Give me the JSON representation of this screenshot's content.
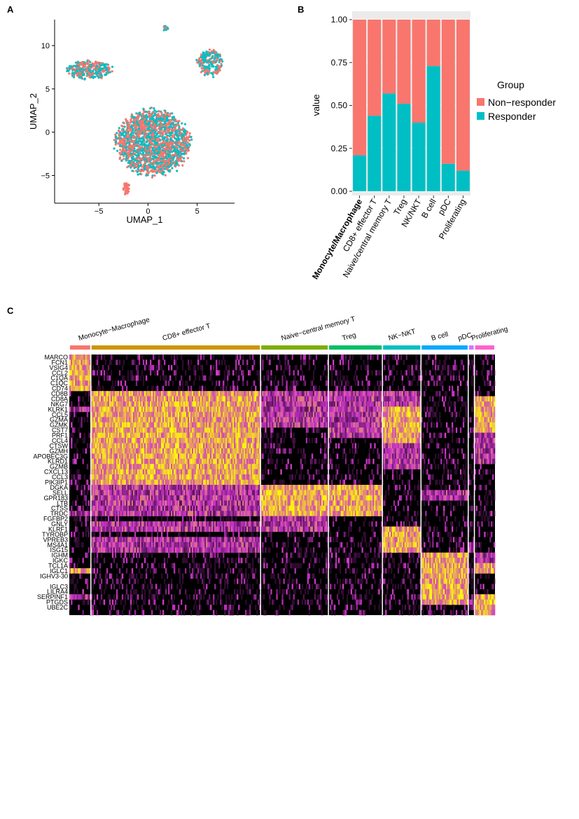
{
  "panels": {
    "a": "A",
    "b": "B",
    "c": "C"
  },
  "chart_data": [
    {
      "type": "scatter",
      "xlabel": "UMAP_1",
      "ylabel": "UMAP_2",
      "xlim": [
        -9.5,
        8.8
      ],
      "ylim": [
        -8.2,
        13
      ],
      "xticks": [
        -5,
        0,
        5
      ],
      "yticks": [
        -5,
        0,
        5,
        10
      ],
      "colors": {
        "Non-responder": "#F8766D",
        "Responder": "#00BFC4"
      },
      "clusters": [
        {
          "cx": 0.5,
          "cy": -1.2,
          "rx": 3.6,
          "ry": 3.6,
          "n": 1900
        },
        {
          "cx": -6.0,
          "cy": 7.2,
          "rx": 2.3,
          "ry": 1.0,
          "n": 320
        },
        {
          "cx": 6.3,
          "cy": 8.0,
          "rx": 1.3,
          "ry": 1.5,
          "n": 230
        },
        {
          "cx": 1.7,
          "cy": 12.0,
          "rx": 0.4,
          "ry": 0.25,
          "n": 18
        },
        {
          "cx": -2.2,
          "cy": -6.5,
          "rx": 0.35,
          "ry": 0.7,
          "n": 40
        }
      ]
    },
    {
      "type": "bar",
      "stacked": true,
      "categories": [
        "Monocyte/Macrophage",
        "CD8+ effector T",
        "Naive/central memory T",
        "Treg",
        "NK/NKT",
        "B cell",
        "pDC",
        "Proliferating"
      ],
      "highlight_category": "Monocyte/Macrophage",
      "highlight_color": "#CC2222",
      "series": [
        {
          "name": "Responder",
          "color": "#00BFC4",
          "values": [
            0.21,
            0.44,
            0.57,
            0.51,
            0.4,
            0.73,
            0.16,
            0.12
          ]
        },
        {
          "name": "Non−responder",
          "color": "#F8766D",
          "values": [
            0.79,
            0.56,
            0.43,
            0.49,
            0.6,
            0.27,
            0.84,
            0.88
          ]
        }
      ],
      "ylabel": "value",
      "ylim": [
        0,
        1.0
      ],
      "yticks": [
        "0.00",
        "0.25",
        "0.50",
        "0.75",
        "1.00"
      ],
      "legend": {
        "title": "Group",
        "items": [
          "Non−responder",
          "Responder"
        ],
        "placement": "right"
      }
    },
    {
      "type": "heatmap",
      "groups": [
        {
          "label": "Monocyte−Macrophage",
          "color": "#F8766D",
          "cells": 42,
          "high": [
            0,
            1,
            2,
            3,
            4,
            5,
            6,
            41
          ],
          "weak": [
            10,
            30,
            46
          ]
        },
        {
          "label": "CD8+ effector T",
          "color": "#CD9600",
          "cells": 330,
          "high": [
            7,
            8,
            9,
            10,
            11,
            12,
            13,
            14,
            15,
            16,
            17,
            18,
            19,
            20,
            21,
            22,
            23,
            24
          ],
          "weak": [
            25,
            26,
            27,
            28,
            29,
            30,
            32,
            33,
            35,
            36,
            37
          ]
        },
        {
          "label": "Naive−central memory T",
          "color": "#7CAE00",
          "cells": 132,
          "high": [
            25,
            26,
            27,
            28,
            29,
            30
          ],
          "weak": [
            7,
            8,
            9,
            10,
            11,
            12,
            13,
            31,
            32,
            33
          ]
        },
        {
          "label": "Treg",
          "color": "#00BE67",
          "cells": 105,
          "high": [
            25,
            26,
            27,
            28,
            29,
            30
          ],
          "weak": [
            7,
            8,
            9,
            10,
            11,
            12,
            13,
            14,
            15
          ]
        },
        {
          "label": "NK−NKT",
          "color": "#00BFC4",
          "cells": 75,
          "high": [
            10,
            11,
            12,
            13,
            14,
            15,
            16,
            33,
            34,
            35,
            36,
            37
          ],
          "weak": [
            7,
            8,
            9,
            17,
            18,
            19,
            20,
            21
          ]
        },
        {
          "label": "B cell",
          "color": "#00A9FF",
          "cells": 92,
          "high": [
            38,
            39,
            40,
            41,
            42,
            43,
            44,
            45,
            46,
            47
          ],
          "weak": [
            26,
            27
          ]
        },
        {
          "label": "pDC",
          "color": "#C77CFF",
          "cells": 12,
          "high": [],
          "weak": [
            36,
            37,
            47,
            48
          ]
        },
        {
          "label": "Proliferating",
          "color": "#FF61CC",
          "cells": 40,
          "high": [
            8,
            9,
            10,
            11,
            12,
            13,
            14,
            40,
            41,
            46,
            47,
            48,
            49
          ],
          "weak": [
            15,
            16,
            17,
            18,
            19,
            20,
            38,
            39
          ]
        }
      ],
      "genes": [
        "MARCO",
        "FCN1",
        "VSIG4",
        "CCL2",
        "C1QA",
        "C1QC",
        "CD74",
        "CD8B",
        "CD8A",
        "NKG7",
        "KLRK1",
        "CCL5",
        "GZMA",
        "GZMK",
        "CST7",
        "PRF1",
        "CCL4",
        "CTSW",
        "GZMH",
        "APOBEC3G",
        "KLRD1",
        "GZMB",
        "CXCL13",
        "CCL3",
        "PIK3IP1",
        "DGKA",
        "SELL",
        "GPR183",
        "LTB",
        "CTSS",
        "TRDC",
        "FGFBP2",
        "GNLY",
        "KLRF1",
        "TYROBP",
        "VPREB3",
        "MS4A1",
        "ISG15",
        "IGHM",
        "IGKC",
        "TCL1A",
        "IGLC1",
        "IGHV3-30",
        "",
        "IGLC3",
        "LILRA4",
        "SERPINF1",
        "PTGDS",
        "UBE2C",
        ""
      ],
      "colors": {
        "low": "#000000",
        "mid": "#CC33CC",
        "high": "#FFFF00"
      }
    }
  ]
}
